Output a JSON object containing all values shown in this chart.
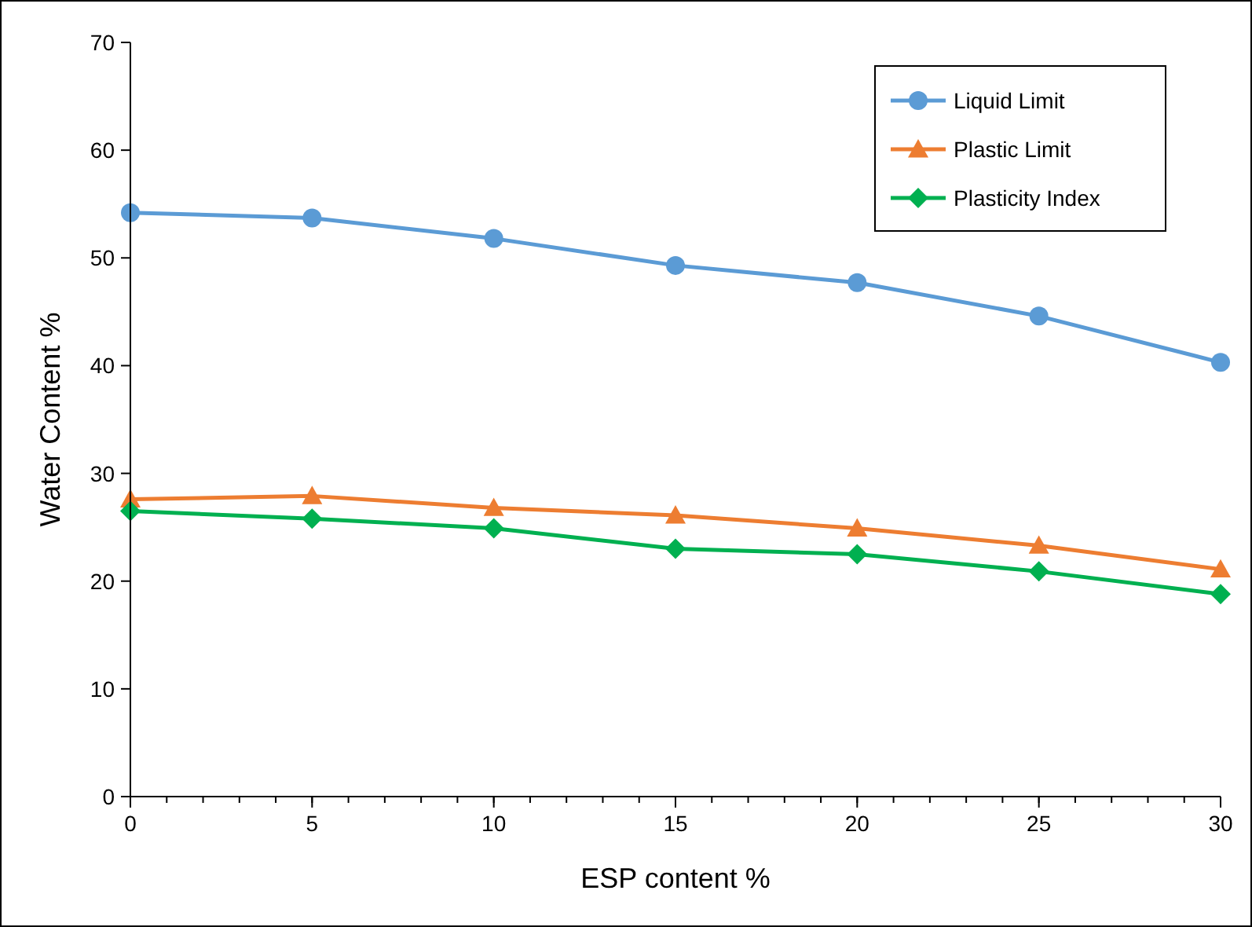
{
  "chart_data": {
    "type": "line",
    "xlabel": "ESP content %",
    "ylabel": "Water Content %",
    "x": [
      0,
      5,
      10,
      15,
      20,
      25,
      30
    ],
    "series": [
      {
        "name": "Liquid Limit",
        "color": "#5b9bd5",
        "marker": "circle",
        "values": [
          54.2,
          53.7,
          51.8,
          49.3,
          47.7,
          44.6,
          40.3
        ]
      },
      {
        "name": "Plastic Limit",
        "color": "#ed7d31",
        "marker": "triangle",
        "values": [
          27.6,
          27.9,
          26.8,
          26.1,
          24.9,
          23.3,
          21.1
        ]
      },
      {
        "name": "Plasticity Index",
        "color": "#00b050",
        "marker": "diamond",
        "values": [
          26.5,
          25.8,
          24.9,
          23.0,
          22.5,
          20.9,
          18.8
        ]
      }
    ],
    "xlim": [
      0,
      30
    ],
    "xticks": [
      0,
      5,
      10,
      15,
      20,
      25,
      30
    ],
    "ylim": [
      0,
      70
    ],
    "yticks": [
      0,
      10,
      20,
      30,
      40,
      50,
      60,
      70
    ],
    "grid": false,
    "legend": "top right",
    "line_style": "solid"
  }
}
